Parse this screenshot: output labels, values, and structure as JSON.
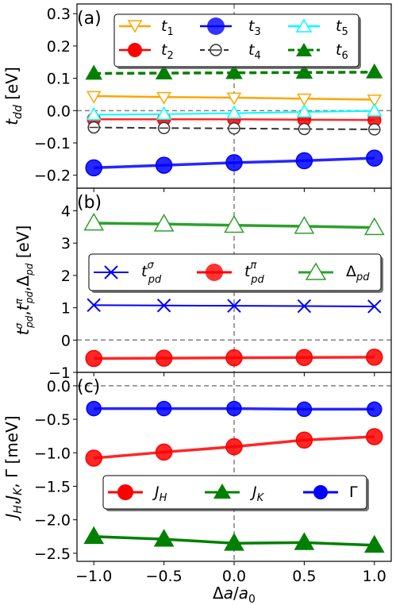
{
  "chart_data": [
    {
      "panel_label": "(a)",
      "type": "line",
      "ylabel": "t_dd [eV]",
      "ylim": [
        -0.24,
        0.33
      ],
      "yticks": [
        0.3,
        0.2,
        0.1,
        0.0,
        -0.1,
        -0.2
      ],
      "ytick_labels": [
        "0.3",
        "0.2",
        "0.1",
        "0.0",
        "−0.1",
        "−0.2"
      ],
      "x": [
        -1.0,
        -0.5,
        0.0,
        0.5,
        1.0
      ],
      "reference_lines": {
        "y": 0.0,
        "x": 0.0
      },
      "legend_position": "top-center",
      "legend_columns": 3,
      "series": [
        {
          "name": "t1",
          "sub": "1",
          "color": "#ffa500",
          "marker": "triangle-down",
          "filled": false,
          "dashed": false,
          "values": [
            0.045,
            0.042,
            0.04,
            0.037,
            0.034
          ]
        },
        {
          "name": "t2",
          "sub": "2",
          "color": "#ff0000",
          "marker": "circle",
          "filled": true,
          "dashed": false,
          "values": [
            -0.027,
            -0.027,
            -0.027,
            -0.028,
            -0.029
          ]
        },
        {
          "name": "t3",
          "sub": "3",
          "color": "#0000ff",
          "marker": "circle",
          "filled": true,
          "dashed": false,
          "values": [
            -0.177,
            -0.169,
            -0.161,
            -0.155,
            -0.147
          ]
        },
        {
          "name": "t4",
          "sub": "4",
          "color": "#333333",
          "marker": "circle-dash",
          "filled": false,
          "dashed": true,
          "values": [
            -0.052,
            -0.054,
            -0.055,
            -0.057,
            -0.058
          ]
        },
        {
          "name": "t5",
          "sub": "5",
          "color": "#00ffff",
          "marker": "triangle-up",
          "filled": false,
          "dashed": false,
          "values": [
            -0.013,
            -0.011,
            -0.008,
            -0.004,
            -0.001
          ]
        },
        {
          "name": "t6",
          "sub": "6",
          "color": "#008000",
          "marker": "triangle-up",
          "filled": true,
          "dashed": true,
          "values": [
            0.115,
            0.116,
            0.117,
            0.118,
            0.119
          ]
        }
      ]
    },
    {
      "panel_label": "(b)",
      "type": "line",
      "ylabel": "t^σ_pd, t^π_pd, Δ_pd [eV]",
      "ylim": [
        -1.0,
        4.7
      ],
      "yticks": [
        4,
        3,
        2,
        1,
        0,
        -1
      ],
      "ytick_labels": [
        "4",
        "3",
        "2",
        "1",
        "0",
        "−1"
      ],
      "x": [
        -1.0,
        -0.5,
        0.0,
        0.5,
        1.0
      ],
      "reference_lines": {
        "y": 0.0,
        "x": 0.0
      },
      "legend_position": "center",
      "legend_columns": 3,
      "series": [
        {
          "name": "t^σ_pd",
          "color": "#0000ff",
          "marker": "x",
          "filled": false,
          "dashed": false,
          "values": [
            1.08,
            1.07,
            1.06,
            1.05,
            1.04
          ]
        },
        {
          "name": "t^π_pd",
          "color": "#ff0000",
          "marker": "circle",
          "filled": true,
          "dashed": false,
          "values": [
            -0.57,
            -0.56,
            -0.55,
            -0.54,
            -0.53
          ]
        },
        {
          "name": "Δ_pd",
          "color": "#2ca02c",
          "marker": "triangle-up",
          "filled": false,
          "dashed": false,
          "values": [
            3.62,
            3.59,
            3.55,
            3.52,
            3.48
          ]
        }
      ]
    },
    {
      "panel_label": "(c)",
      "type": "line",
      "ylabel": "J_H, J_K, Γ [meV]",
      "xlabel": "Δa/a₀",
      "ylim": [
        -2.62,
        0.2
      ],
      "yticks": [
        0.0,
        -0.5,
        -1.0,
        -1.5,
        -2.0,
        -2.5
      ],
      "ytick_labels": [
        "0.0",
        "−0.5",
        "−1.0",
        "−1.5",
        "−2.0",
        "−2.5"
      ],
      "xlim": [
        -1.12,
        1.12
      ],
      "xticks": [
        -1.0,
        -0.5,
        0.0,
        0.5,
        1.0
      ],
      "xtick_labels": [
        "−1.0",
        "−0.5",
        "0.0",
        "0.5",
        "1.0"
      ],
      "x": [
        -1.0,
        -0.5,
        0.0,
        0.5,
        1.0
      ],
      "reference_lines": {
        "y": 0.0,
        "x": 0.0
      },
      "legend_position": "lower-center",
      "legend_columns": 3,
      "series": [
        {
          "name": "J_H",
          "color": "#ff0000",
          "marker": "circle",
          "filled": true,
          "dashed": false,
          "values": [
            -1.08,
            -0.99,
            -0.91,
            -0.81,
            -0.76
          ]
        },
        {
          "name": "J_K",
          "color": "#008000",
          "marker": "triangle-up",
          "filled": true,
          "dashed": false,
          "values": [
            -2.25,
            -2.29,
            -2.35,
            -2.34,
            -2.38
          ]
        },
        {
          "name": "Γ",
          "color": "#0000ff",
          "marker": "circle",
          "filled": true,
          "dashed": false,
          "values": [
            -0.34,
            -0.34,
            -0.34,
            -0.35,
            -0.35
          ]
        }
      ]
    }
  ]
}
